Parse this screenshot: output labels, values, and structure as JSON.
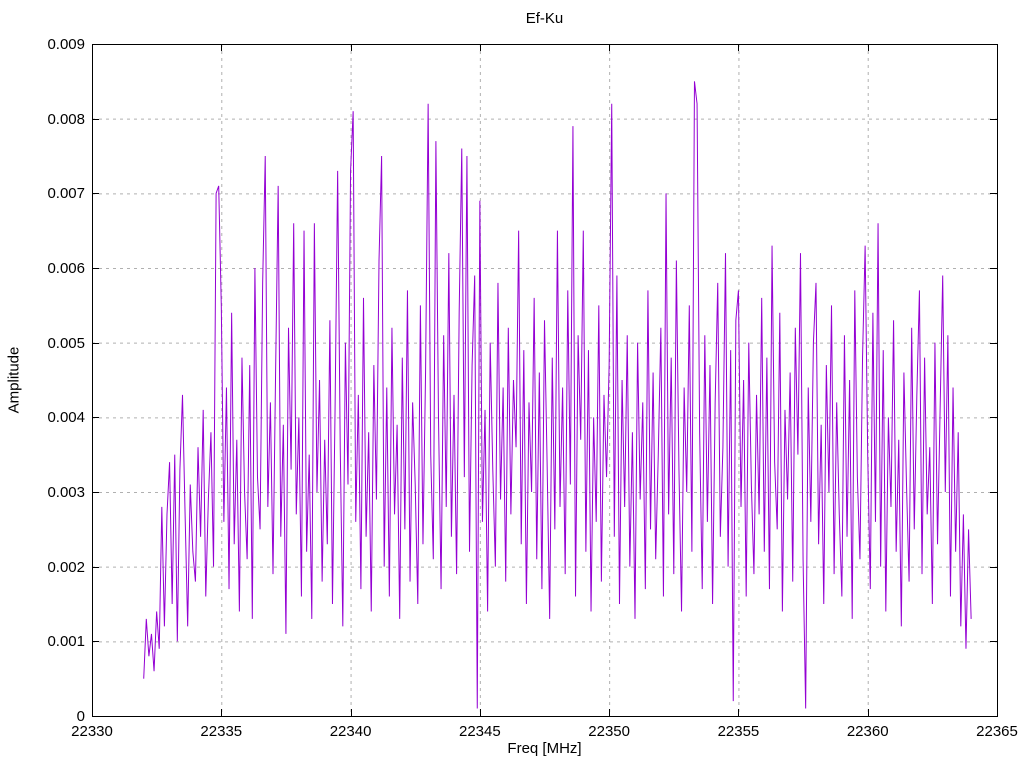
{
  "chart_data": {
    "type": "line",
    "title": "Ef-Ku",
    "xlabel": "Freq [MHz]",
    "ylabel": "Amplitude",
    "xlim": [
      22330,
      22365
    ],
    "ylim": [
      0,
      0.009
    ],
    "xticks": [
      22330,
      22335,
      22340,
      22345,
      22350,
      22355,
      22360,
      22365
    ],
    "xtick_labels": [
      "22330",
      "22335",
      "22340",
      "22345",
      "22350",
      "22355",
      "22360",
      "22365"
    ],
    "yticks": [
      0,
      0.001,
      0.002,
      0.003,
      0.004,
      0.005,
      0.006,
      0.007,
      0.008,
      0.009
    ],
    "ytick_labels": [
      "0",
      "0.001",
      "0.002",
      "0.003",
      "0.004",
      "0.005",
      "0.006",
      "0.007",
      "0.008",
      "0.009"
    ],
    "grid": true,
    "legend_position": "none",
    "line_color": "#9400d3",
    "grid_color": "#b0b0b0",
    "border_color": "#000000",
    "series": [
      {
        "name": "Ef-Ku",
        "x0": 22332.0,
        "dx": 0.1,
        "values": [
          0.0005,
          0.0013,
          0.0008,
          0.0011,
          0.0006,
          0.0014,
          0.0009,
          0.0028,
          0.0012,
          0.0027,
          0.0034,
          0.0015,
          0.0035,
          0.001,
          0.0033,
          0.0043,
          0.0027,
          0.0012,
          0.0031,
          0.0022,
          0.0018,
          0.0036,
          0.0024,
          0.0041,
          0.0016,
          0.0029,
          0.0038,
          0.002,
          0.007,
          0.0071,
          0.0055,
          0.0026,
          0.0044,
          0.0017,
          0.0054,
          0.0023,
          0.0037,
          0.0014,
          0.0048,
          0.003,
          0.0021,
          0.0047,
          0.0013,
          0.006,
          0.0032,
          0.0025,
          0.0058,
          0.0075,
          0.0028,
          0.0042,
          0.0019,
          0.0046,
          0.0071,
          0.0024,
          0.0039,
          0.0011,
          0.0052,
          0.0033,
          0.0066,
          0.0027,
          0.004,
          0.0016,
          0.0065,
          0.0022,
          0.0035,
          0.0013,
          0.0066,
          0.003,
          0.0045,
          0.0018,
          0.0037,
          0.0023,
          0.0053,
          0.0015,
          0.0041,
          0.0073,
          0.0036,
          0.0012,
          0.005,
          0.0031,
          0.0073,
          0.0081,
          0.0026,
          0.0043,
          0.0017,
          0.0056,
          0.0024,
          0.0038,
          0.0014,
          0.0047,
          0.0029,
          0.0061,
          0.0075,
          0.002,
          0.0044,
          0.0016,
          0.0052,
          0.0027,
          0.0039,
          0.0013,
          0.0048,
          0.0025,
          0.0057,
          0.0018,
          0.0042,
          0.0031,
          0.0015,
          0.0055,
          0.0023,
          0.0046,
          0.0082,
          0.0035,
          0.0021,
          0.0077,
          0.004,
          0.0017,
          0.0051,
          0.0028,
          0.0062,
          0.0024,
          0.0043,
          0.0019,
          0.0054,
          0.0076,
          0.0032,
          0.0075,
          0.0022,
          0.0047,
          0.0059,
          0.0001,
          0.0069,
          0.0026,
          0.0041,
          0.0014,
          0.005,
          0.0033,
          0.002,
          0.0058,
          0.0029,
          0.0044,
          0.0018,
          0.0052,
          0.0027,
          0.0045,
          0.0036,
          0.0065,
          0.0023,
          0.0049,
          0.0015,
          0.0042,
          0.003,
          0.0056,
          0.0021,
          0.0046,
          0.0017,
          0.0053,
          0.0034,
          0.0013,
          0.0048,
          0.0025,
          0.0065,
          0.0028,
          0.0044,
          0.0019,
          0.0057,
          0.0031,
          0.0079,
          0.0016,
          0.0051,
          0.0037,
          0.0065,
          0.0022,
          0.0049,
          0.0014,
          0.004,
          0.0026,
          0.0055,
          0.0018,
          0.0043,
          0.0032,
          0.0047,
          0.0082,
          0.0024,
          0.0059,
          0.0015,
          0.0045,
          0.0028,
          0.0051,
          0.002,
          0.0038,
          0.0013,
          0.005,
          0.0029,
          0.0042,
          0.0017,
          0.0057,
          0.0025,
          0.0046,
          0.0021,
          0.0035,
          0.0052,
          0.0016,
          0.007,
          0.0027,
          0.0048,
          0.0019,
          0.0061,
          0.0033,
          0.0014,
          0.0044,
          0.003,
          0.0055,
          0.0022,
          0.0085,
          0.0082,
          0.0038,
          0.0017,
          0.0051,
          0.0026,
          0.0047,
          0.0015,
          0.0042,
          0.0058,
          0.0024,
          0.0036,
          0.0062,
          0.002,
          0.0049,
          0.0002,
          0.0053,
          0.0057,
          0.0028,
          0.0045,
          0.0016,
          0.005,
          0.0031,
          0.0019,
          0.0043,
          0.0027,
          0.0056,
          0.0022,
          0.0048,
          0.0017,
          0.0063,
          0.0034,
          0.0025,
          0.0054,
          0.0014,
          0.0041,
          0.0029,
          0.0046,
          0.0018,
          0.0052,
          0.0035,
          0.0062,
          0.0021,
          0.0001,
          0.0044,
          0.0026,
          0.005,
          0.0058,
          0.0023,
          0.0039,
          0.0015,
          0.0047,
          0.003,
          0.0055,
          0.0019,
          0.0042,
          0.0027,
          0.0016,
          0.0051,
          0.0024,
          0.0045,
          0.0013,
          0.0057,
          0.0032,
          0.0021,
          0.0048,
          0.0063,
          0.0035,
          0.0017,
          0.0054,
          0.0026,
          0.0066,
          0.002,
          0.0049,
          0.0014,
          0.004,
          0.0028,
          0.0053,
          0.0022,
          0.0037,
          0.0012,
          0.0046,
          0.0031,
          0.0018,
          0.0052,
          0.0025,
          0.0043,
          0.0057,
          0.0019,
          0.0048,
          0.0027,
          0.0036,
          0.0015,
          0.005,
          0.0023,
          0.0041,
          0.0059,
          0.003,
          0.0051,
          0.0016,
          0.0044,
          0.0022,
          0.0038,
          0.0012,
          0.0027,
          0.0009,
          0.0025,
          0.0013
        ]
      }
    ]
  }
}
